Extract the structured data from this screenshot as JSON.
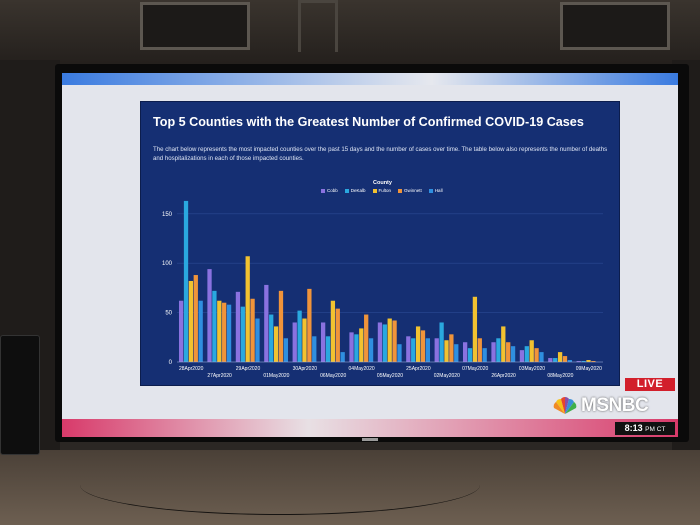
{
  "scene": {
    "network_logo": "MSNBC",
    "live_label": "LIVE",
    "time": "8:13",
    "timezone": "PM CT"
  },
  "panel": {
    "title": "Top 5 Counties with the Greatest Number of Confirmed COVID-19 Cases",
    "description": "The chart below represents the most impacted counties over the past 15 days and the number of cases over time. The table below also represents the number of deaths and hospitalizations in each of those impacted counties."
  },
  "legend": {
    "title": "County",
    "items": [
      {
        "label": "Cobb",
        "color": "#8a72e0"
      },
      {
        "label": "DeKalb",
        "color": "#2aa8df"
      },
      {
        "label": "Fulton",
        "color": "#f2c230"
      },
      {
        "label": "Gwinnett",
        "color": "#f0943a"
      },
      {
        "label": "Hall",
        "color": "#2f8fe0"
      }
    ]
  },
  "chart_data": {
    "type": "bar",
    "title": "Top 5 Counties with the Greatest Number of Confirmed COVID-19 Cases",
    "xlabel": "",
    "ylabel": "",
    "ylim": [
      0,
      170
    ],
    "yticks": [
      0,
      50,
      100,
      150
    ],
    "categories": [
      "28Apr2020",
      "27Apr2020",
      "29Apr2020",
      "01May2020",
      "30Apr2020",
      "06May2020",
      "04May2020",
      "05May2020",
      "25Apr2020",
      "02May2020",
      "07May2020",
      "26Apr2020",
      "03May2020",
      "08May2020",
      "09May2020"
    ],
    "series": [
      {
        "name": "Cobb",
        "color": "#8a72e0",
        "values": [
          62,
          94,
          71,
          78,
          40,
          40,
          30,
          40,
          26,
          24,
          20,
          20,
          12,
          4,
          1
        ]
      },
      {
        "name": "DeKalb",
        "color": "#2aa8df",
        "values": [
          163,
          72,
          56,
          48,
          52,
          26,
          28,
          38,
          24,
          40,
          14,
          24,
          16,
          4,
          1
        ]
      },
      {
        "name": "Fulton",
        "color": "#f2c230",
        "values": [
          82,
          62,
          107,
          36,
          44,
          62,
          34,
          44,
          36,
          22,
          66,
          36,
          22,
          10,
          2
        ]
      },
      {
        "name": "Gwinnett",
        "color": "#f0943a",
        "values": [
          88,
          60,
          64,
          72,
          74,
          54,
          48,
          42,
          32,
          28,
          24,
          20,
          14,
          6,
          1
        ]
      },
      {
        "name": "Hall",
        "color": "#2f8fe0",
        "values": [
          62,
          58,
          44,
          24,
          26,
          10,
          24,
          18,
          24,
          18,
          14,
          16,
          10,
          2,
          0
        ]
      }
    ],
    "grid": true,
    "legend_position": "top"
  }
}
